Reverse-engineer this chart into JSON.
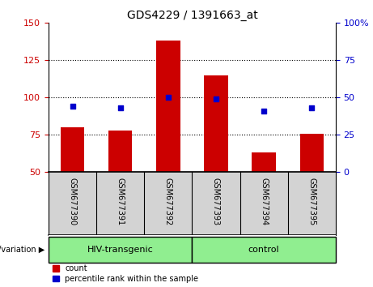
{
  "title": "GDS4229 / 1391663_at",
  "samples": [
    "GSM677390",
    "GSM677391",
    "GSM677392",
    "GSM677393",
    "GSM677394",
    "GSM677395"
  ],
  "counts": [
    80,
    78,
    138,
    115,
    63,
    76
  ],
  "percentiles": [
    44,
    43,
    50,
    49,
    41,
    43
  ],
  "bar_color": "#cc0000",
  "dot_color": "#0000cc",
  "left_ylim": [
    50,
    150
  ],
  "right_ylim": [
    0,
    100
  ],
  "left_yticks": [
    50,
    75,
    100,
    125,
    150
  ],
  "right_yticks": [
    0,
    25,
    50,
    75,
    100
  ],
  "groups": [
    {
      "label": "HIV-transgenic",
      "span": [
        0,
        2
      ]
    },
    {
      "label": "control",
      "span": [
        3,
        5
      ]
    }
  ],
  "group_color": "#90ee90",
  "sample_box_color": "#d3d3d3",
  "group_label": "genotype/variation",
  "legend_count_label": "count",
  "legend_percentile_label": "percentile rank within the sample",
  "background_color": "#ffffff",
  "bar_width": 0.5
}
